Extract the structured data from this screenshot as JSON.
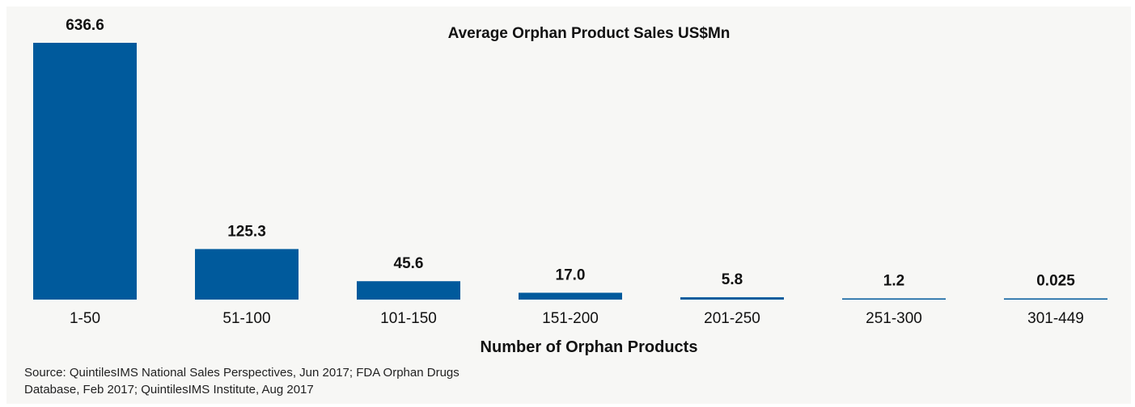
{
  "chart_data": {
    "type": "bar",
    "title": "Average Orphan Product Sales US$Mn",
    "xlabel": "Number of Orphan Products",
    "ylabel": "",
    "categories": [
      "1-50",
      "51-100",
      "101-150",
      "151-200",
      "201-250",
      "251-300",
      "301-449"
    ],
    "values": [
      636.6,
      125.3,
      45.6,
      17.0,
      5.8,
      1.2,
      0.025
    ],
    "value_labels": [
      "636.6",
      "125.3",
      "45.6",
      "17.0",
      "5.8",
      "1.2",
      "0.025"
    ],
    "ylim": [
      0,
      636.6
    ],
    "grid": false,
    "legend": "none",
    "bar_color": "#005a9c"
  },
  "source_line1": "Source: QuintilesIMS National Sales Perspectives, Jun 2017; FDA Orphan Drugs",
  "source_line2": "Database, Feb 2017; QuintilesIMS Institute, Aug 2017"
}
